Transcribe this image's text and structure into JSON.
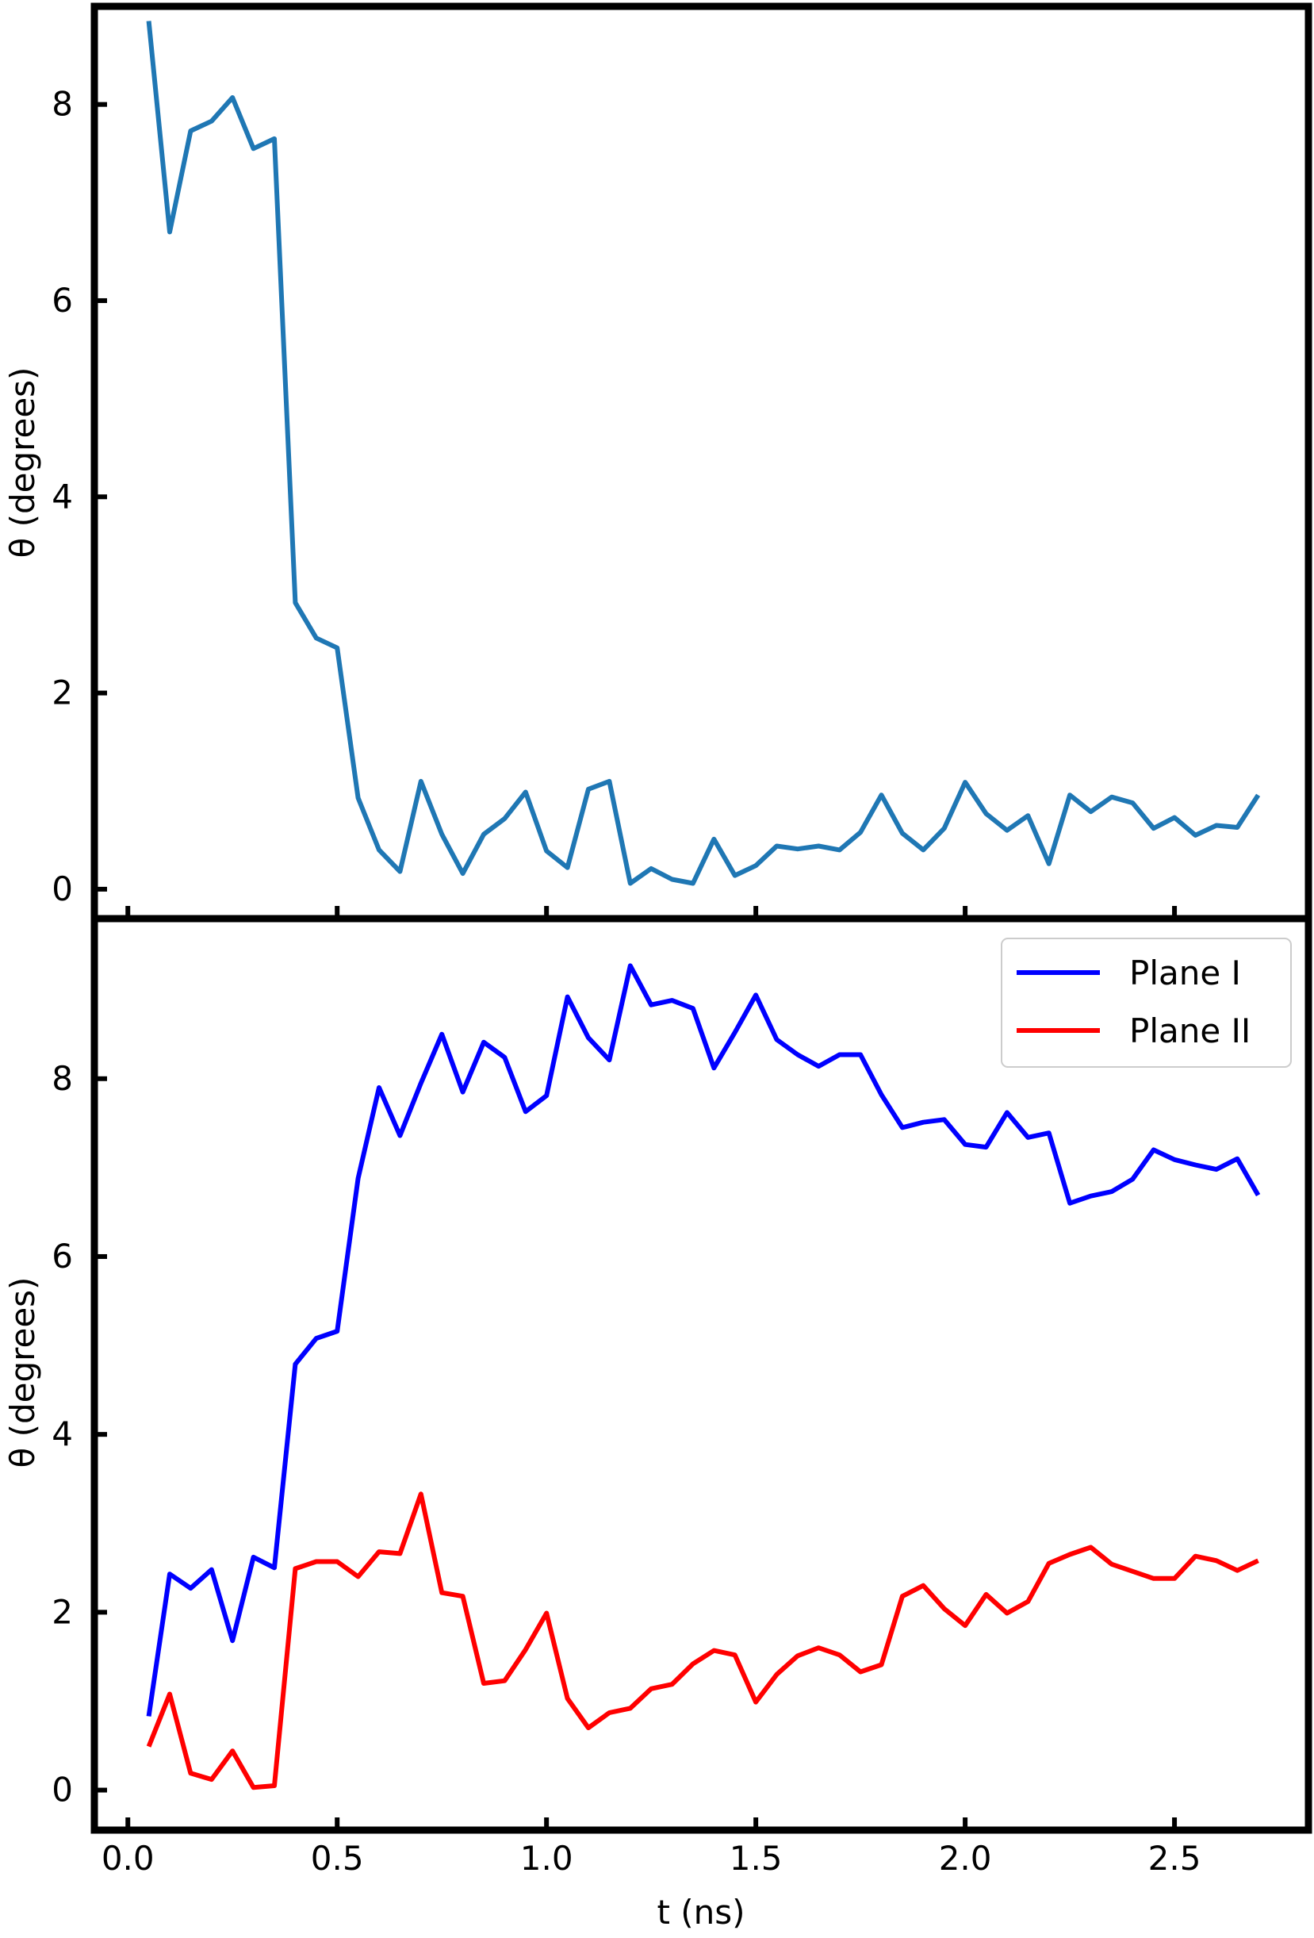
{
  "chart_data": [
    {
      "type": "line",
      "ylabel": "θ (degrees)",
      "xlabel": "",
      "ylim": [
        -0.3,
        9.0
      ],
      "xlim": [
        -0.08,
        2.82
      ],
      "yticks": [
        "0",
        "2",
        "4",
        "6",
        "8"
      ],
      "ytick_values": [
        0,
        2,
        4,
        6,
        8
      ],
      "xtick_values": [
        0.0,
        0.5,
        1.0,
        1.5,
        2.0,
        2.5
      ],
      "x": [
        0.05,
        0.1,
        0.15,
        0.2,
        0.25,
        0.3,
        0.35,
        0.4,
        0.45,
        0.5,
        0.55,
        0.6,
        0.65,
        0.7,
        0.75,
        0.8,
        0.85,
        0.9,
        0.95,
        1.0,
        1.05,
        1.1,
        1.15,
        1.2,
        1.25,
        1.3,
        1.35,
        1.4,
        1.45,
        1.5,
        1.55,
        1.6,
        1.65,
        1.7,
        1.75,
        1.8,
        1.85,
        1.9,
        1.95,
        2.0,
        2.05,
        2.1,
        2.15,
        2.2,
        2.25,
        2.3,
        2.35,
        2.4,
        2.45,
        2.5,
        2.55,
        2.6,
        2.65,
        2.7
      ],
      "series": [
        {
          "color": "#1f77b4",
          "values": [
            8.85,
            6.7,
            7.73,
            7.83,
            8.07,
            7.55,
            7.65,
            2.92,
            2.56,
            2.46,
            0.93,
            0.4,
            0.18,
            1.1,
            0.56,
            0.16,
            0.56,
            0.72,
            0.99,
            0.39,
            0.22,
            1.02,
            1.1,
            0.06,
            0.21,
            0.1,
            0.06,
            0.51,
            0.14,
            0.24,
            0.44,
            0.41,
            0.44,
            0.4,
            0.58,
            0.96,
            0.57,
            0.4,
            0.62,
            1.09,
            0.77,
            0.6,
            0.75,
            0.26,
            0.96,
            0.79,
            0.94,
            0.88,
            0.62,
            0.73,
            0.55,
            0.65,
            0.63,
            0.96
          ]
        }
      ]
    },
    {
      "type": "line",
      "ylabel": "θ (degrees)",
      "xlabel": "t (ns)",
      "ylim": [
        -0.45,
        9.8
      ],
      "xlim": [
        -0.08,
        2.82
      ],
      "yticks": [
        "0",
        "2",
        "4",
        "6",
        "8"
      ],
      "ytick_values": [
        0,
        2,
        4,
        6,
        8
      ],
      "xticks": [
        "0.0",
        "0.5",
        "1.0",
        "1.5",
        "2.0",
        "2.5"
      ],
      "xtick_values": [
        0.0,
        0.5,
        1.0,
        1.5,
        2.0,
        2.5
      ],
      "legend_position": "top-right",
      "x": [
        0.05,
        0.1,
        0.15,
        0.2,
        0.25,
        0.3,
        0.35,
        0.4,
        0.45,
        0.5,
        0.55,
        0.6,
        0.65,
        0.7,
        0.75,
        0.8,
        0.85,
        0.9,
        0.95,
        1.0,
        1.05,
        1.1,
        1.15,
        1.2,
        1.25,
        1.3,
        1.35,
        1.4,
        1.45,
        1.5,
        1.55,
        1.6,
        1.65,
        1.7,
        1.75,
        1.8,
        1.85,
        1.9,
        1.95,
        2.0,
        2.05,
        2.1,
        2.15,
        2.2,
        2.25,
        2.3,
        2.35,
        2.4,
        2.45,
        2.5,
        2.55,
        2.6,
        2.65,
        2.7
      ],
      "series": [
        {
          "name": "Plane I",
          "color": "#0000ff",
          "values": [
            0.83,
            2.43,
            2.27,
            2.48,
            1.68,
            2.62,
            2.5,
            4.79,
            5.08,
            5.16,
            6.88,
            7.9,
            7.36,
            7.95,
            8.5,
            7.85,
            8.41,
            8.24,
            7.63,
            7.81,
            8.92,
            8.46,
            8.21,
            9.27,
            8.83,
            8.88,
            8.79,
            8.12,
            8.52,
            8.94,
            8.44,
            8.27,
            8.14,
            8.27,
            8.27,
            7.82,
            7.45,
            7.51,
            7.54,
            7.26,
            7.23,
            7.62,
            7.34,
            7.39,
            6.6,
            6.68,
            6.73,
            6.87,
            7.2,
            7.09,
            7.03,
            6.98,
            7.1,
            6.69
          ]
        },
        {
          "name": "Plane II",
          "color": "#ff0000",
          "values": [
            0.49,
            1.08,
            0.19,
            0.12,
            0.44,
            0.03,
            0.05,
            2.49,
            2.57,
            2.57,
            2.4,
            2.68,
            2.66,
            3.33,
            2.22,
            2.18,
            1.2,
            1.23,
            1.58,
            1.99,
            1.03,
            0.7,
            0.87,
            0.92,
            1.14,
            1.19,
            1.42,
            1.57,
            1.52,
            0.99,
            1.3,
            1.51,
            1.6,
            1.52,
            1.33,
            1.41,
            2.18,
            2.3,
            2.04,
            1.85,
            2.2,
            1.99,
            2.12,
            2.55,
            2.65,
            2.73,
            2.54,
            2.46,
            2.38,
            2.38,
            2.63,
            2.58,
            2.47,
            2.58
          ]
        }
      ]
    }
  ]
}
